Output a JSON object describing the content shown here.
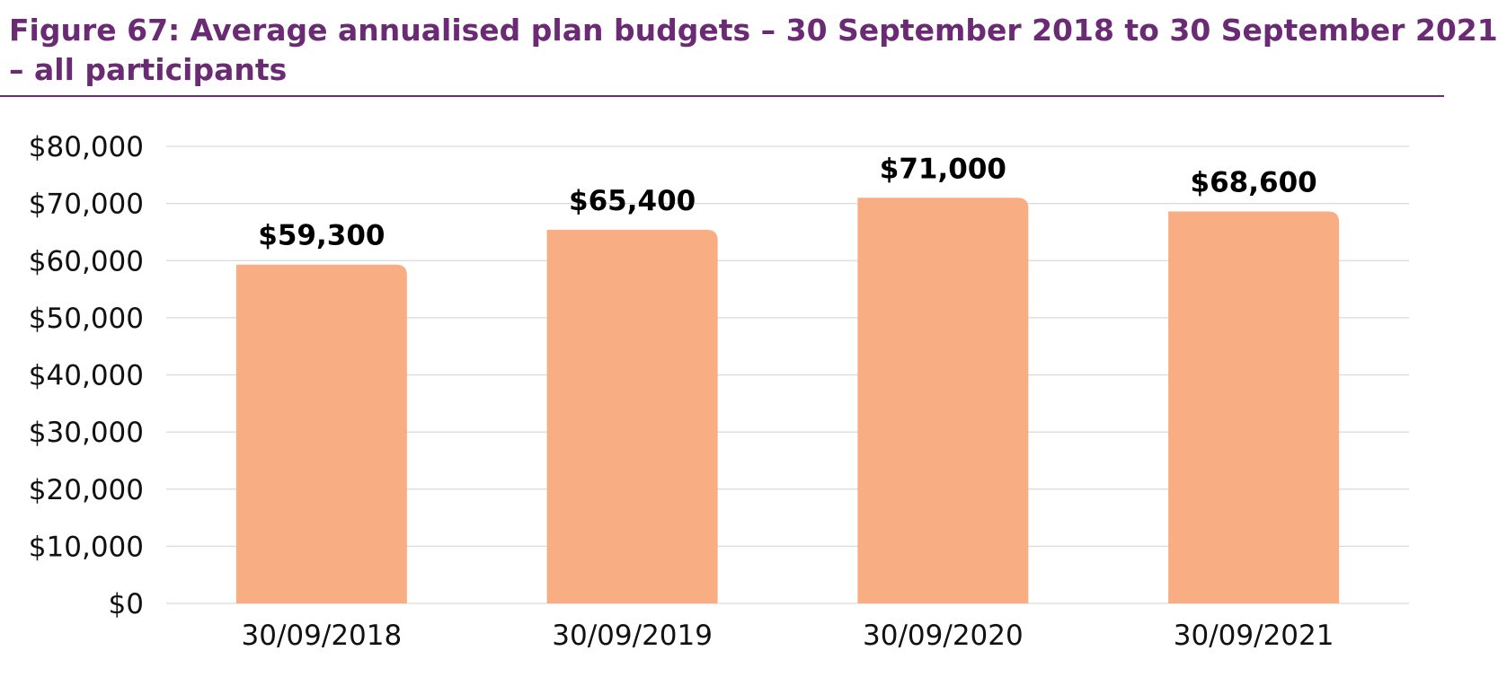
{
  "figure": {
    "title_line1": "Figure 67: Average annualised plan budgets – 30 September 2018 to 30 September 2021",
    "title_line2": "– all participants"
  },
  "colors": {
    "title": "#6b2a74",
    "bar": "#f8ad82",
    "grid": "#d9d9d9",
    "axis_text": "#111111"
  },
  "chart_data": {
    "type": "bar",
    "title": "Figure 67: Average annualised plan budgets – 30 September 2018 to 30 September 2021 – all participants",
    "xlabel": "",
    "ylabel": "",
    "categories": [
      "30/09/2018",
      "30/09/2019",
      "30/09/2020",
      "30/09/2021"
    ],
    "values": [
      59300,
      65400,
      71000,
      68600
    ],
    "value_labels": [
      "$59,300",
      "$65,400",
      "$71,000",
      "$68,600"
    ],
    "ylim": [
      0,
      80000
    ],
    "yticks": [
      0,
      10000,
      20000,
      30000,
      40000,
      50000,
      60000,
      70000,
      80000
    ],
    "ytick_labels": [
      "$0",
      "$10,000",
      "$20,000",
      "$30,000",
      "$40,000",
      "$50,000",
      "$60,000",
      "$70,000",
      "$80,000"
    ],
    "grid": true,
    "legend": "none"
  }
}
